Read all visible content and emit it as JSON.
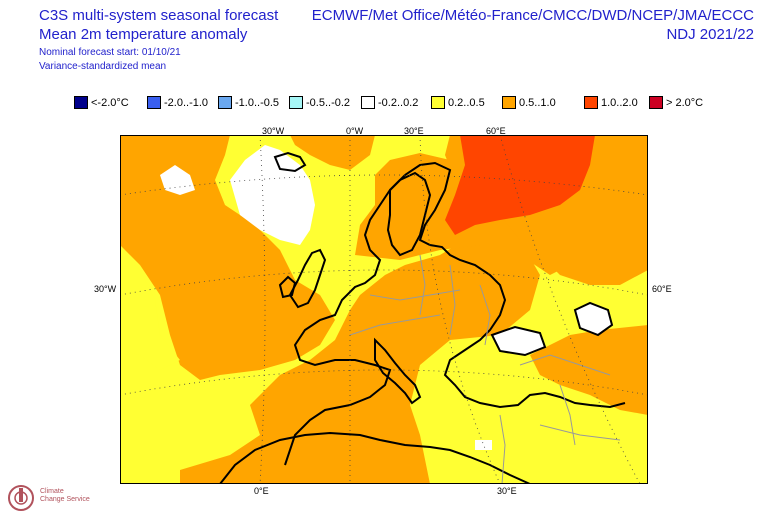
{
  "header": {
    "title_line1": "C3S multi-system seasonal forecast",
    "title_line2": "Mean 2m temperature anomaly",
    "nominal_start": "Nominal forecast start: 01/10/21",
    "method": "Variance-standardized mean",
    "systems": "ECMWF/Met Office/Météo-France/CMCC/DWD/NCEP/JMA/ECCC",
    "season": "NDJ 2021/22"
  },
  "legend": [
    {
      "label": "<-2.0°C",
      "color": "#00008b"
    },
    {
      "label": "-2.0..-1.0",
      "color": "#3a5ff0"
    },
    {
      "label": "-1.0..-0.5",
      "color": "#6aa8f0"
    },
    {
      "label": "-0.5..-0.2",
      "color": "#a6f6f6"
    },
    {
      "label": "-0.2..0.2",
      "color": "#ffffff"
    },
    {
      "label": "0.2..0.5",
      "color": "#ffff33"
    },
    {
      "label": "0.5..1.0",
      "color": "#ffa500"
    },
    {
      "label": "1.0..2.0",
      "color": "#ff4500"
    },
    {
      "label": "> 2.0°C",
      "color": "#cc0022"
    }
  ],
  "graticule_labels": {
    "top": [
      "30°W",
      "0°W",
      "30°E",
      "60°E"
    ],
    "left": "30°W",
    "right": "60°E",
    "bottom": [
      "0°E",
      "30°E"
    ]
  },
  "logo": {
    "line1": "Climate",
    "line2": "Change Service"
  }
}
